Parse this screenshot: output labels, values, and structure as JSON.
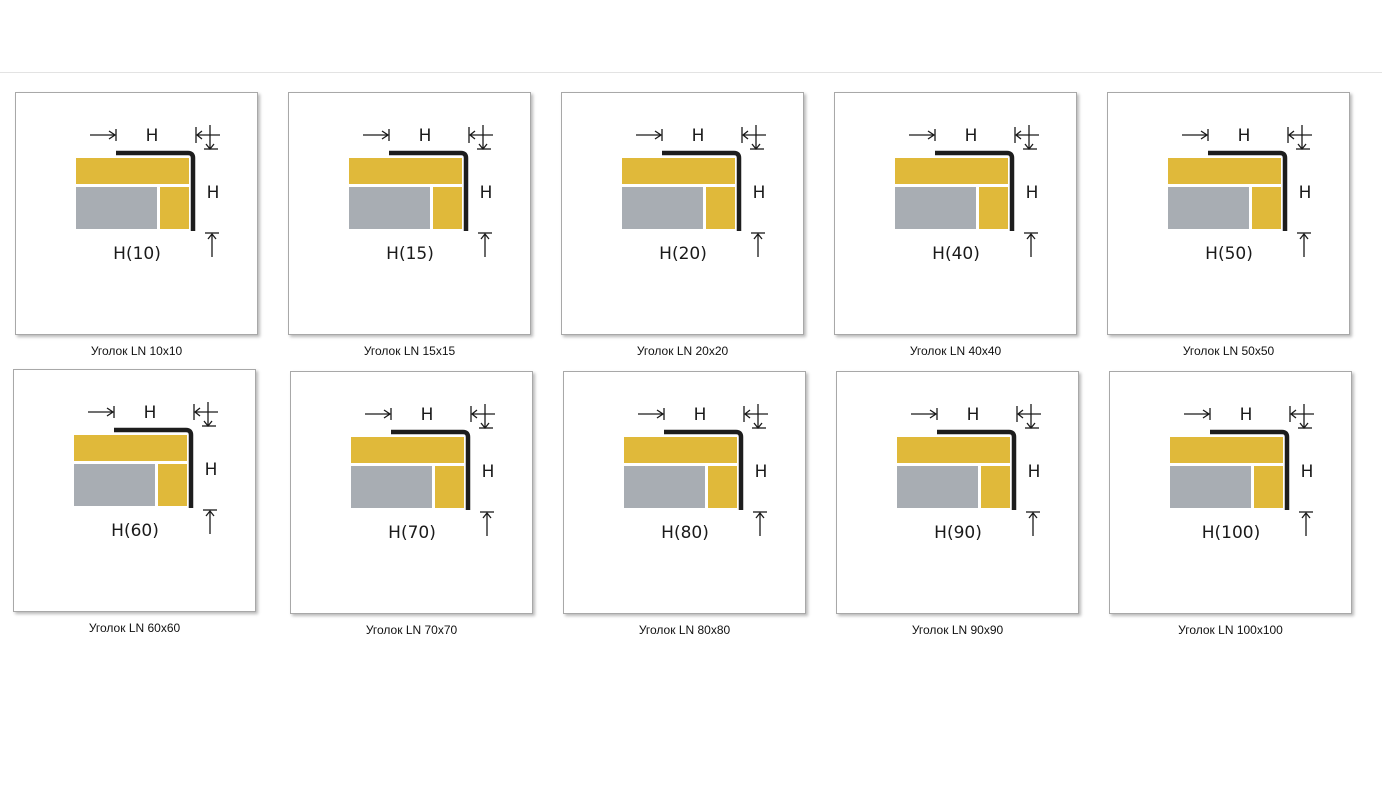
{
  "colors": {
    "tile": "#e0b93a",
    "stone": "#a8adb3",
    "profile": "#1d1d1d",
    "dimension": "#1a1a1a"
  },
  "diagram": {
    "top_dim_label": "H",
    "side_dim_label": "H"
  },
  "items": [
    {
      "caption": "Уголок LN 10x10",
      "label": "H(10)"
    },
    {
      "caption": "Уголок LN 15x15",
      "label": "H(15)"
    },
    {
      "caption": "Уголок LN 20x20",
      "label": "H(20)"
    },
    {
      "caption": "Уголок LN 40x40",
      "label": "H(40)"
    },
    {
      "caption": "Уголок LN 50x50",
      "label": "H(50)"
    },
    {
      "caption": "Уголок LN 60x60",
      "label": "H(60)"
    },
    {
      "caption": "Уголок LN 70x70",
      "label": "H(70)"
    },
    {
      "caption": "Уголок LN 80x80",
      "label": "H(80)"
    },
    {
      "caption": "Уголок LN 90x90",
      "label": "H(90)"
    },
    {
      "caption": "Уголок LN 100x100",
      "label": "H(100)"
    }
  ]
}
